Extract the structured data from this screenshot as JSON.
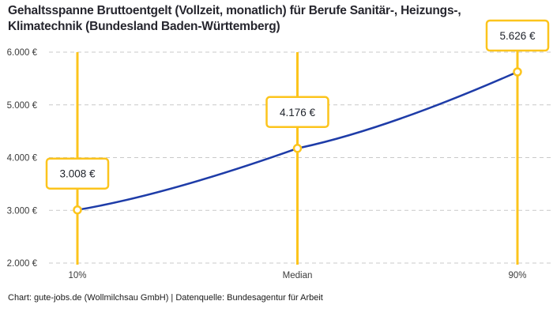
{
  "title": {
    "line1": "Gehaltsspanne Bruttoentgelt (Vollzeit, monatlich) für Berufe Sanitär-, Heizungs-,",
    "line2": "Klimatechnik (Bundesland Baden-Württemberg)"
  },
  "footer": "Chart: gute-jobs.de (Wollmilchsau GmbH) | Datenquelle: Bundesagentur für Arbeit",
  "chart_data": {
    "type": "line",
    "title": "Gehaltsspanne Bruttoentgelt (Vollzeit, monatlich) für Berufe Sanitär-, Heizungs-, Klimatechnik (Bundesland Baden-Württemberg)",
    "categories": [
      "10%",
      "Median",
      "90%"
    ],
    "values": [
      3008,
      4176,
      5626
    ],
    "value_labels": [
      "3.008 €",
      "4.176 €",
      "5.626 €"
    ],
    "ylim": [
      2000,
      6000
    ],
    "ytick_step": 1000,
    "ytick_labels": [
      "2.000 €",
      "3.000 €",
      "4.000 €",
      "5.000 €",
      "6.000 €"
    ],
    "xlabel": "",
    "ylabel": "",
    "grid": "horizontal-dashed",
    "legend": "none",
    "colors": {
      "line": "#1E3CA8",
      "highlight": "#FCC41C",
      "label_box_bg": "#FFFFFF",
      "grid": "#C9C9C9",
      "axis_text": "#3B3B3B",
      "title_text": "#26262E"
    }
  }
}
